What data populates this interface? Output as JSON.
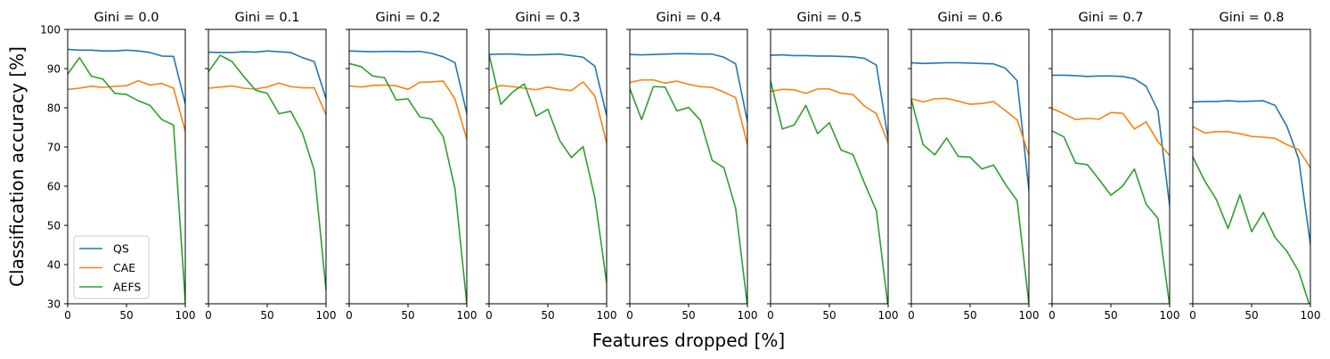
{
  "chart_data": {
    "type": "line",
    "shared": {
      "x": [
        0,
        10,
        20,
        30,
        40,
        50,
        60,
        70,
        80,
        90,
        100
      ],
      "xlim": [
        0,
        100
      ],
      "ylim": [
        30,
        100
      ],
      "xticks": [
        "0",
        "50",
        "100"
      ],
      "yticks": [
        "30",
        "40",
        "50",
        "60",
        "70",
        "80",
        "90",
        "100"
      ],
      "ylabel": "Classification accuracy [%]",
      "xlabel": "Features dropped [%]",
      "legend": {
        "position": "lower-left",
        "entries": [
          "QS",
          "CAE",
          "AEFS"
        ]
      },
      "colors": {
        "QS": "#1f77b4",
        "CAE": "#ff7f0e",
        "AEFS": "#2ca02c"
      },
      "grid": false
    },
    "panels": [
      {
        "title": "Gini = 0.0",
        "series": [
          {
            "name": "QS",
            "values": [
              94.9,
              94.7,
              94.7,
              94.5,
              94.5,
              94.7,
              94.5,
              94.1,
              93.2,
              93.1,
              81.0
            ]
          },
          {
            "name": "CAE",
            "values": [
              84.7,
              85.0,
              85.5,
              85.2,
              85.5,
              85.6,
              86.9,
              85.8,
              86.2,
              85.0,
              74.0
            ]
          },
          {
            "name": "AEFS",
            "values": [
              88.6,
              92.8,
              88.1,
              87.3,
              83.7,
              83.4,
              81.8,
              80.6,
              77.0,
              75.6,
              30.5
            ]
          }
        ]
      },
      {
        "title": "Gini = 0.1",
        "series": [
          {
            "name": "QS",
            "values": [
              94.2,
              94.1,
              94.1,
              94.3,
              94.2,
              94.5,
              94.3,
              94.1,
              92.8,
              91.8,
              82.3
            ]
          },
          {
            "name": "CAE",
            "values": [
              85.0,
              85.3,
              85.6,
              85.0,
              84.8,
              85.3,
              86.3,
              85.4,
              85.1,
              85.1,
              78.2
            ]
          },
          {
            "name": "AEFS",
            "values": [
              89.2,
              93.4,
              91.8,
              88.0,
              84.5,
              83.7,
              78.5,
              79.1,
              73.5,
              64.0,
              33.5
            ]
          }
        ]
      },
      {
        "title": "Gini = 0.2",
        "series": [
          {
            "name": "QS",
            "values": [
              94.5,
              94.4,
              94.3,
              94.4,
              94.4,
              94.3,
              94.4,
              93.9,
              93.0,
              91.5,
              78.5
            ]
          },
          {
            "name": "CAE",
            "values": [
              85.6,
              85.3,
              85.7,
              85.8,
              85.6,
              84.7,
              86.5,
              86.6,
              86.8,
              82.2,
              72.0
            ]
          },
          {
            "name": "AEFS",
            "values": [
              91.3,
              90.5,
              88.1,
              87.7,
              82.0,
              82.3,
              77.7,
              77.1,
              72.6,
              59.3,
              30.0
            ]
          }
        ]
      },
      {
        "title": "Gini = 0.3",
        "series": [
          {
            "name": "QS",
            "values": [
              93.6,
              93.7,
              93.7,
              93.5,
              93.5,
              93.6,
              93.7,
              93.3,
              92.9,
              90.6,
              78.0
            ]
          },
          {
            "name": "CAE",
            "values": [
              84.5,
              85.7,
              85.4,
              85.0,
              84.6,
              85.3,
              84.7,
              84.4,
              86.6,
              83.0,
              71.0
            ]
          },
          {
            "name": "AEFS",
            "values": [
              93.6,
              80.9,
              84.0,
              86.1,
              77.9,
              79.6,
              71.7,
              67.3,
              70.1,
              57.0,
              35.3
            ]
          }
        ]
      },
      {
        "title": "Gini = 0.4",
        "series": [
          {
            "name": "QS",
            "values": [
              93.6,
              93.5,
              93.6,
              93.7,
              93.8,
              93.8,
              93.7,
              93.7,
              92.9,
              91.2,
              76.5
            ]
          },
          {
            "name": "CAE",
            "values": [
              86.5,
              87.1,
              87.1,
              86.3,
              86.8,
              86.0,
              85.4,
              85.2,
              84.0,
              82.6,
              70.6
            ]
          },
          {
            "name": "AEFS",
            "values": [
              84.9,
              77.0,
              85.4,
              85.3,
              79.2,
              80.1,
              76.8,
              66.6,
              64.7,
              54.4,
              29.5
            ]
          }
        ]
      },
      {
        "title": "Gini = 0.5",
        "series": [
          {
            "name": "QS",
            "values": [
              93.4,
              93.5,
              93.3,
              93.3,
              93.2,
              93.2,
              93.1,
              93.0,
              92.6,
              90.9,
              72.0
            ]
          },
          {
            "name": "CAE",
            "values": [
              84.2,
              84.7,
              84.6,
              83.7,
              84.8,
              84.8,
              83.7,
              83.4,
              80.4,
              78.5,
              71.0
            ]
          },
          {
            "name": "AEFS",
            "values": [
              86.9,
              74.6,
              75.6,
              80.6,
              73.4,
              76.2,
              69.2,
              68.1,
              60.7,
              53.7,
              29.0
            ]
          }
        ]
      },
      {
        "title": "Gini = 0.6",
        "series": [
          {
            "name": "QS",
            "values": [
              91.5,
              91.3,
              91.4,
              91.5,
              91.5,
              91.4,
              91.3,
              91.2,
              90.1,
              86.9,
              59.0
            ]
          },
          {
            "name": "CAE",
            "values": [
              82.3,
              81.5,
              82.3,
              82.4,
              81.7,
              80.9,
              81.1,
              81.6,
              79.3,
              76.9,
              67.9
            ]
          },
          {
            "name": "AEFS",
            "values": [
              82.1,
              70.6,
              68.0,
              72.3,
              67.6,
              67.4,
              64.4,
              65.4,
              60.5,
              56.3,
              30.0
            ]
          }
        ]
      },
      {
        "title": "Gini = 0.7",
        "series": [
          {
            "name": "QS",
            "values": [
              88.3,
              88.3,
              88.2,
              88.0,
              88.1,
              88.1,
              88.0,
              87.4,
              85.5,
              79.3,
              55.0
            ]
          },
          {
            "name": "CAE",
            "values": [
              79.8,
              78.5,
              77.0,
              77.3,
              77.1,
              78.8,
              78.6,
              74.6,
              76.4,
              71.4,
              67.8
            ]
          },
          {
            "name": "AEFS",
            "values": [
              74.1,
              72.6,
              65.9,
              65.5,
              61.7,
              57.7,
              60.0,
              64.4,
              55.4,
              51.8,
              29.5
            ]
          }
        ]
      },
      {
        "title": "Gini = 0.8",
        "series": [
          {
            "name": "QS",
            "values": [
              81.5,
              81.6,
              81.6,
              81.8,
              81.6,
              81.7,
              81.8,
              80.6,
              75.3,
              67.0,
              45.2
            ]
          },
          {
            "name": "CAE",
            "values": [
              75.2,
              73.6,
              73.9,
              73.9,
              73.4,
              72.7,
              72.5,
              72.2,
              70.6,
              69.3,
              64.7
            ]
          },
          {
            "name": "AEFS",
            "values": [
              67.5,
              61.4,
              56.6,
              49.2,
              57.8,
              48.4,
              53.3,
              46.9,
              43.4,
              38.3,
              29.0
            ]
          }
        ]
      }
    ]
  }
}
